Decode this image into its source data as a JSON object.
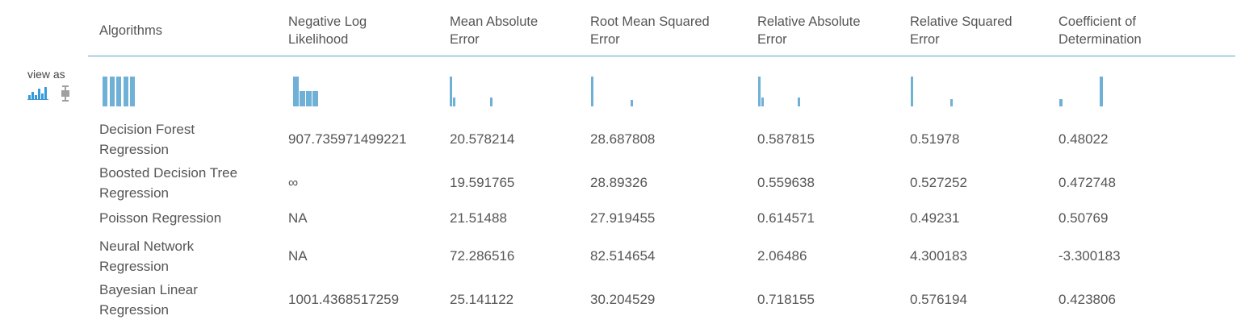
{
  "view_as": {
    "label": "view as",
    "icons": [
      "histogram-view-icon",
      "boxplot-view-icon"
    ]
  },
  "headers": [
    [
      "Algorithms"
    ],
    [
      "Negative Log",
      "Likelihood"
    ],
    [
      "Mean Absolute",
      "Error"
    ],
    [
      "Root Mean Squared",
      "Error"
    ],
    [
      "Relative Absolute",
      "Error"
    ],
    [
      "Relative Squared",
      "Error"
    ],
    [
      "Coefficient of",
      "Determination"
    ]
  ],
  "rows": [
    {
      "algorithm": [
        "Decision Forest",
        "Regression"
      ],
      "values": [
        "907.735971499221",
        "20.578214",
        "28.687808",
        "0.587815",
        "0.51978",
        "0.48022"
      ]
    },
    {
      "algorithm": [
        "Boosted Decision Tree",
        "Regression"
      ],
      "values": [
        "∞",
        "19.591765",
        "28.89326",
        "0.559638",
        "0.527252",
        "0.472748"
      ]
    },
    {
      "algorithm": [
        "Poisson Regression"
      ],
      "values": [
        "NA",
        "21.51488",
        "27.919455",
        "0.614571",
        "0.49231",
        "0.50769"
      ]
    },
    {
      "algorithm": [
        "Neural Network",
        "Regression"
      ],
      "values": [
        "NA",
        "72.286516",
        "82.514654",
        "2.06486",
        "4.300183",
        "-3.300183"
      ]
    },
    {
      "algorithm": [
        "Bayesian Linear",
        "Regression"
      ],
      "values": [
        "1001.4368517259",
        "25.141122",
        "30.204529",
        "0.718155",
        "0.576194",
        "0.423806"
      ]
    }
  ],
  "sparkline_heights": [
    [
      1,
      1,
      1,
      1,
      1
    ],
    [
      1,
      0.5,
      0.5,
      0.5
    ],
    [
      1,
      0.3,
      0.3
    ],
    [
      1,
      0.22
    ],
    [
      1,
      0.3,
      0.3
    ],
    [
      1,
      0.25
    ],
    [
      0.25,
      1
    ]
  ],
  "colors": {
    "bar": "#6eb0d6",
    "divider": "#5fa6bf",
    "icon_active": "#3a9ad9",
    "icon_inactive": "#a0a0a0"
  }
}
